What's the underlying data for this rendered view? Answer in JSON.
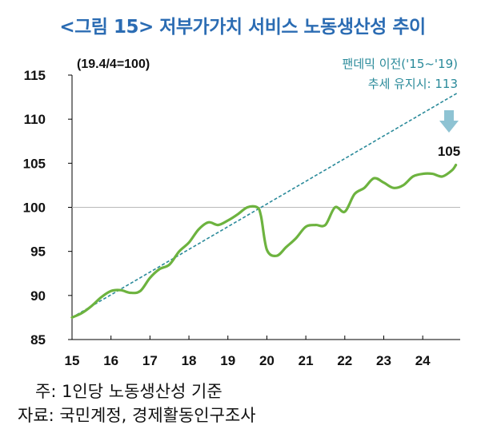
{
  "title": "<그림 15> 저부가가치 서비스 노동생산성 추이",
  "notes": {
    "line1": "주: 1인당 노동생산성 기준",
    "line2": "자료: 국민계정, 경제활동인구조사"
  },
  "colors": {
    "title": "#2b6cb3",
    "actual": "#6db33f",
    "trend": "#2a8a9a",
    "arrow": "#8ec3d3",
    "gridline": "#b9b9b9"
  },
  "chart_data": {
    "type": "line",
    "unit_note": "(19.4/4=100)",
    "y_ticks": [
      85,
      90,
      95,
      100,
      105,
      110,
      115
    ],
    "ylim": [
      85,
      115
    ],
    "xlim": [
      15,
      24.9
    ],
    "x_ticks": [
      "15",
      "16",
      "17",
      "18",
      "19",
      "20",
      "21",
      "22",
      "23",
      "24"
    ],
    "reference_line": 100,
    "series": [
      {
        "style": "solid",
        "x": [
          15.0,
          15.25,
          15.5,
          15.75,
          16.0,
          16.25,
          16.5,
          16.75,
          17.0,
          17.25,
          17.5,
          17.75,
          18.0,
          18.25,
          18.5,
          18.75,
          19.0,
          19.25,
          19.5,
          19.75,
          19.85,
          20.0,
          20.25,
          20.5,
          20.75,
          21.0,
          21.25,
          21.5,
          21.75,
          22.0,
          22.25,
          22.5,
          22.75,
          23.0,
          23.25,
          23.5,
          23.75,
          24.0,
          24.25,
          24.5,
          24.75,
          24.85
        ],
        "y": [
          87.5,
          88.0,
          88.8,
          89.8,
          90.5,
          90.6,
          90.3,
          90.5,
          92.0,
          93.0,
          93.5,
          95.0,
          96.0,
          97.5,
          98.3,
          98.0,
          98.5,
          99.2,
          100.0,
          100.0,
          99.0,
          95.2,
          94.5,
          95.5,
          96.5,
          97.8,
          98.0,
          98.0,
          100.0,
          99.5,
          101.5,
          102.2,
          103.3,
          102.8,
          102.2,
          102.5,
          103.5,
          103.8,
          103.8,
          103.5,
          104.2,
          104.8
        ]
      },
      {
        "style": "dashed",
        "x": [
          15.0,
          24.9
        ],
        "y": [
          87.5,
          113.0
        ]
      }
    ],
    "annotations": {
      "trend_line1": "팬데믹 이전('15~'19)",
      "trend_line2": "추세 유지시: 113",
      "end_value": "105"
    }
  }
}
